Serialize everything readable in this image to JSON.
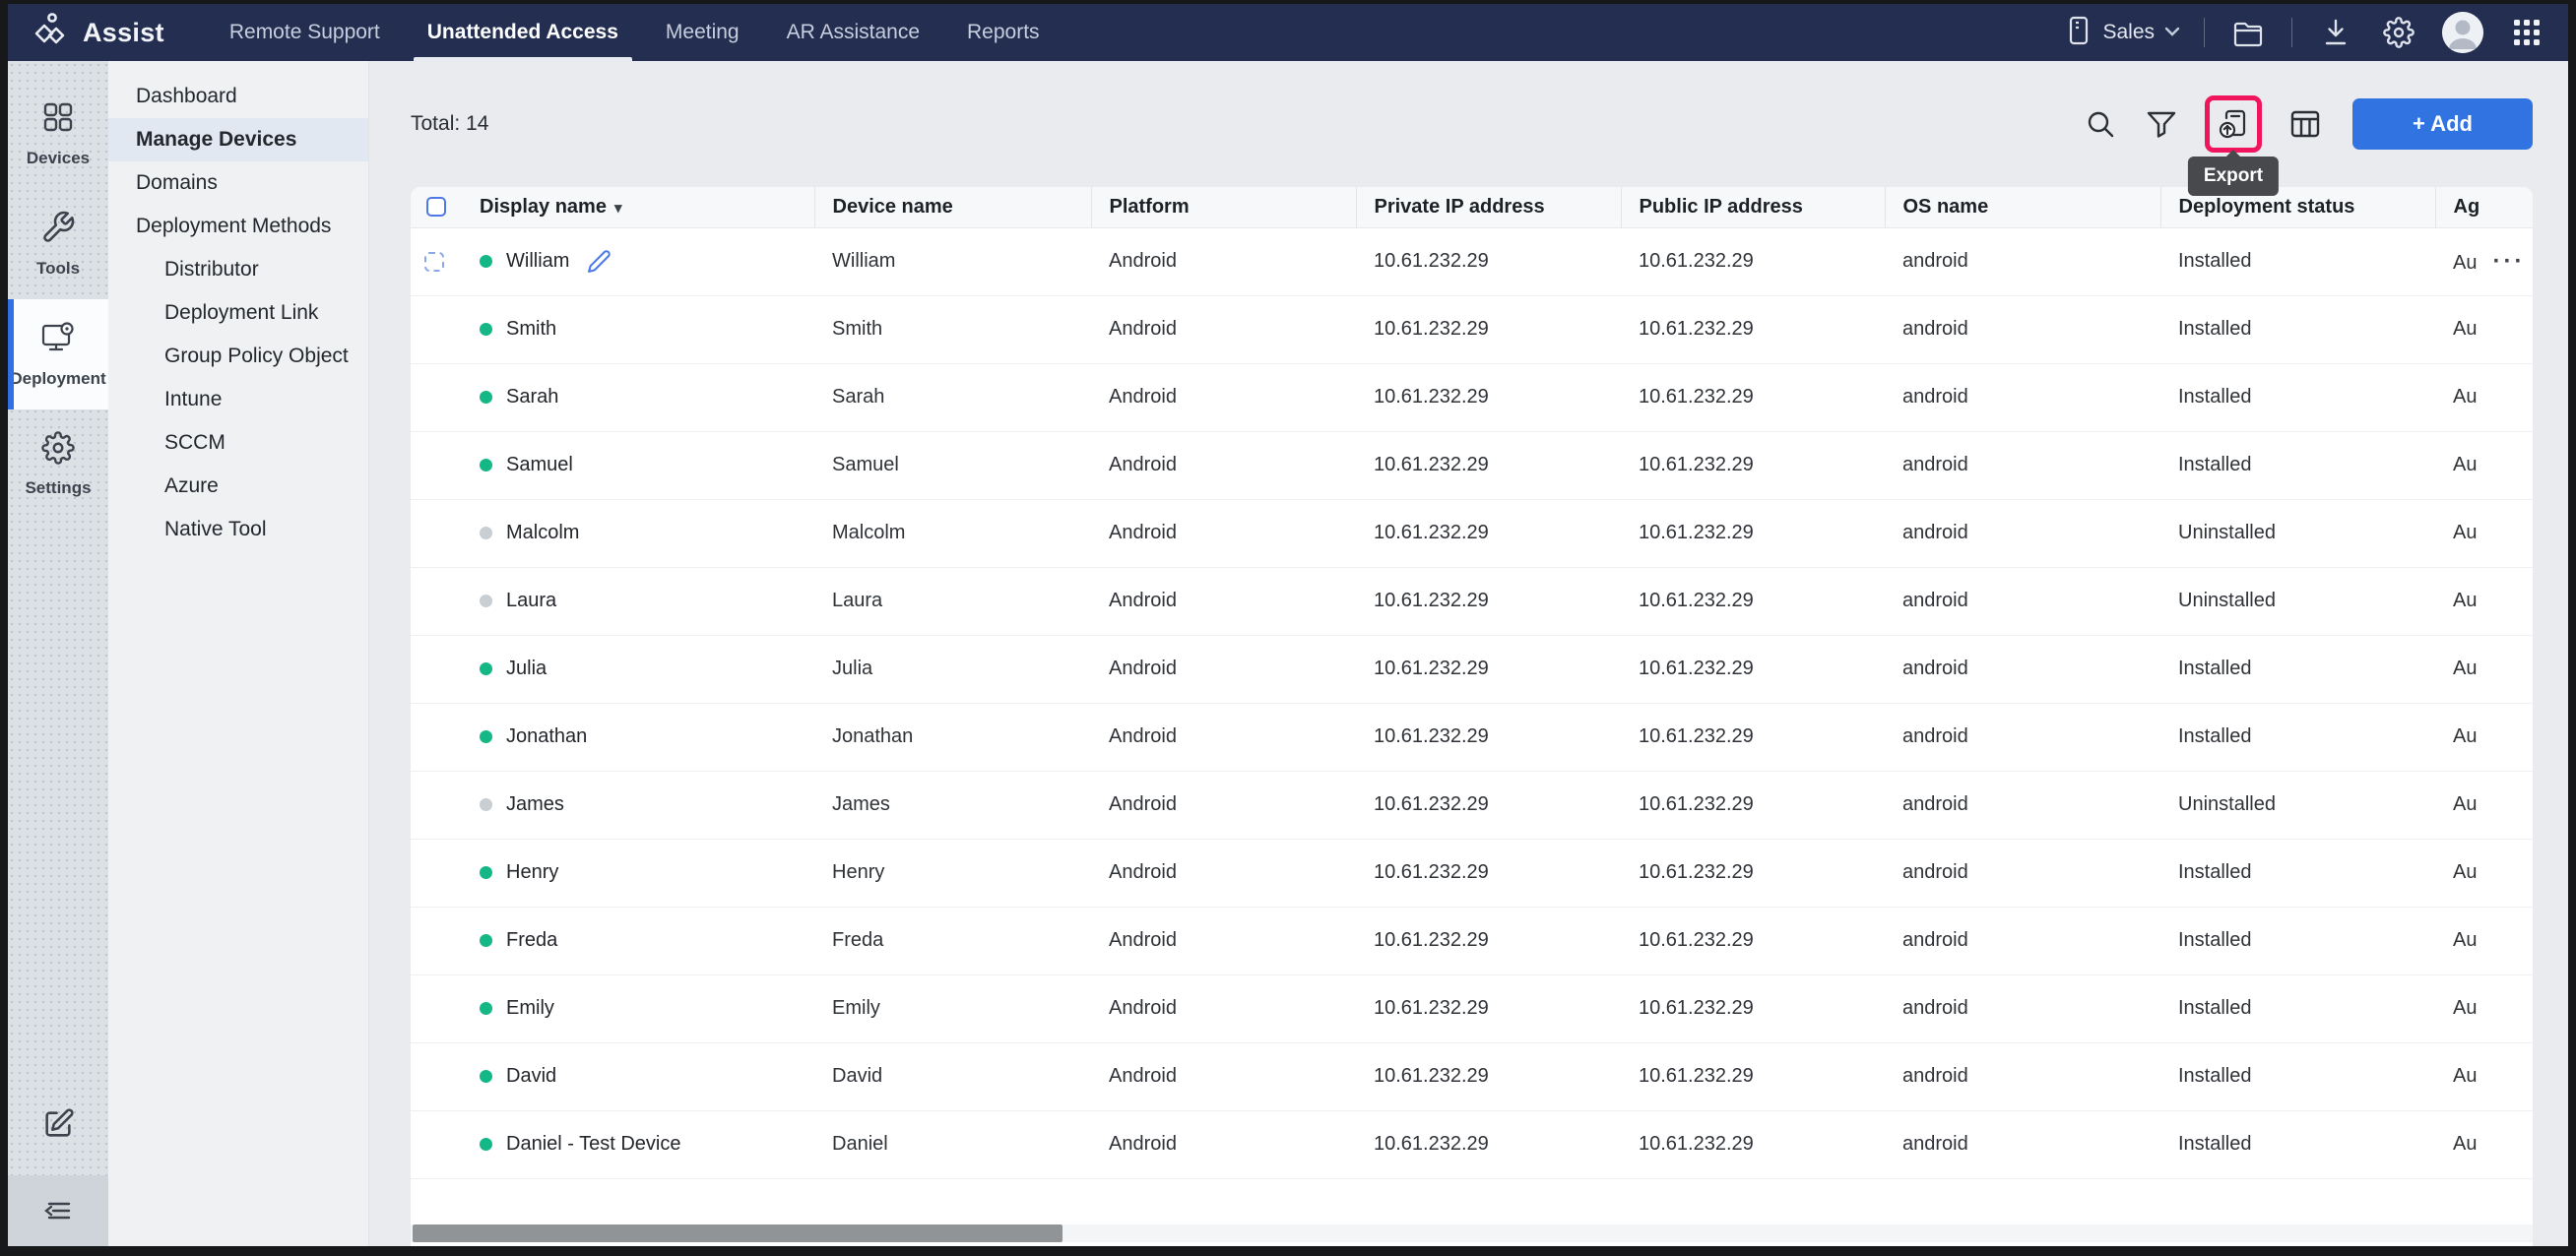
{
  "app": {
    "name": "Assist"
  },
  "topnav": {
    "tabs": [
      {
        "label": "Remote Support"
      },
      {
        "label": "Unattended Access",
        "active": true
      },
      {
        "label": "Meeting"
      },
      {
        "label": "AR Assistance"
      },
      {
        "label": "Reports"
      }
    ],
    "org": {
      "label": "Sales"
    }
  },
  "rail": {
    "items": [
      {
        "label": "Devices"
      },
      {
        "label": "Tools"
      },
      {
        "label": "Deployment",
        "active": true
      },
      {
        "label": "Settings"
      }
    ]
  },
  "sidebar": {
    "items": [
      {
        "label": "Dashboard"
      },
      {
        "label": "Manage Devices",
        "active": true
      },
      {
        "label": "Domains"
      },
      {
        "label": "Deployment Methods"
      },
      {
        "label": "Distributor",
        "sub": true
      },
      {
        "label": "Deployment Link",
        "sub": true
      },
      {
        "label": "Group Policy Object",
        "sub": true
      },
      {
        "label": "Intune",
        "sub": true
      },
      {
        "label": "SCCM",
        "sub": true
      },
      {
        "label": "Azure",
        "sub": true
      },
      {
        "label": "Native Tool",
        "sub": true
      }
    ]
  },
  "toolbar": {
    "total": "Total: 14",
    "add_label": "+ Add",
    "export_tooltip": "Export"
  },
  "table": {
    "columns": [
      "Display name",
      "Device name",
      "Platform",
      "Private IP address",
      "Public IP address",
      "OS name",
      "Deployment status",
      "Ag"
    ],
    "rows": [
      {
        "display_name": "William",
        "online": true,
        "device_name": "William",
        "platform": "Android",
        "private_ip": "10.61.232.29",
        "public_ip": "10.61.232.29",
        "os_name": "android",
        "status": "Installed",
        "agent": "Au",
        "controls": true
      },
      {
        "display_name": "Smith",
        "online": true,
        "device_name": "Smith",
        "platform": "Android",
        "private_ip": "10.61.232.29",
        "public_ip": "10.61.232.29",
        "os_name": "android",
        "status": "Installed",
        "agent": "Au"
      },
      {
        "display_name": "Sarah",
        "online": true,
        "device_name": "Sarah",
        "platform": "Android",
        "private_ip": "10.61.232.29",
        "public_ip": "10.61.232.29",
        "os_name": "android",
        "status": "Installed",
        "agent": "Au"
      },
      {
        "display_name": "Samuel",
        "online": true,
        "device_name": "Samuel",
        "platform": "Android",
        "private_ip": "10.61.232.29",
        "public_ip": "10.61.232.29",
        "os_name": "android",
        "status": "Installed",
        "agent": "Au"
      },
      {
        "display_name": "Malcolm",
        "online": false,
        "device_name": "Malcolm",
        "platform": "Android",
        "private_ip": "10.61.232.29",
        "public_ip": "10.61.232.29",
        "os_name": "android",
        "status": "Uninstalled",
        "agent": "Au"
      },
      {
        "display_name": "Laura",
        "online": false,
        "device_name": "Laura",
        "platform": "Android",
        "private_ip": "10.61.232.29",
        "public_ip": "10.61.232.29",
        "os_name": "android",
        "status": "Uninstalled",
        "agent": "Au"
      },
      {
        "display_name": "Julia",
        "online": true,
        "device_name": "Julia",
        "platform": "Android",
        "private_ip": "10.61.232.29",
        "public_ip": "10.61.232.29",
        "os_name": "android",
        "status": "Installed",
        "agent": "Au"
      },
      {
        "display_name": "Jonathan",
        "online": true,
        "device_name": "Jonathan",
        "platform": "Android",
        "private_ip": "10.61.232.29",
        "public_ip": "10.61.232.29",
        "os_name": "android",
        "status": "Installed",
        "agent": "Au"
      },
      {
        "display_name": "James",
        "online": false,
        "device_name": "James",
        "platform": "Android",
        "private_ip": "10.61.232.29",
        "public_ip": "10.61.232.29",
        "os_name": "android",
        "status": "Uninstalled",
        "agent": "Au"
      },
      {
        "display_name": "Henry",
        "online": true,
        "device_name": "Henry",
        "platform": "Android",
        "private_ip": "10.61.232.29",
        "public_ip": "10.61.232.29",
        "os_name": "android",
        "status": "Installed",
        "agent": "Au"
      },
      {
        "display_name": "Freda",
        "online": true,
        "device_name": "Freda",
        "platform": "Android",
        "private_ip": "10.61.232.29",
        "public_ip": "10.61.232.29",
        "os_name": "android",
        "status": "Installed",
        "agent": "Au"
      },
      {
        "display_name": "Emily",
        "online": true,
        "device_name": "Emily",
        "platform": "Android",
        "private_ip": "10.61.232.29",
        "public_ip": "10.61.232.29",
        "os_name": "android",
        "status": "Installed",
        "agent": "Au"
      },
      {
        "display_name": "David",
        "online": true,
        "device_name": "David",
        "platform": "Android",
        "private_ip": "10.61.232.29",
        "public_ip": "10.61.232.29",
        "os_name": "android",
        "status": "Installed",
        "agent": "Au"
      },
      {
        "display_name": "Daniel - Test Device",
        "online": true,
        "device_name": "Daniel",
        "platform": "Android",
        "private_ip": "10.61.232.29",
        "public_ip": "10.61.232.29",
        "os_name": "android",
        "status": "Installed",
        "agent": "Au"
      }
    ],
    "more_glyph": "···",
    "sort_glyph": "▾"
  },
  "colors": {
    "navbar": "#232e51",
    "accent_blue": "#3273e2",
    "highlight_red": "#f0155c",
    "online_green": "#14b886",
    "offline_gray": "#c9ced3",
    "tooltip_bg": "#47494d"
  }
}
